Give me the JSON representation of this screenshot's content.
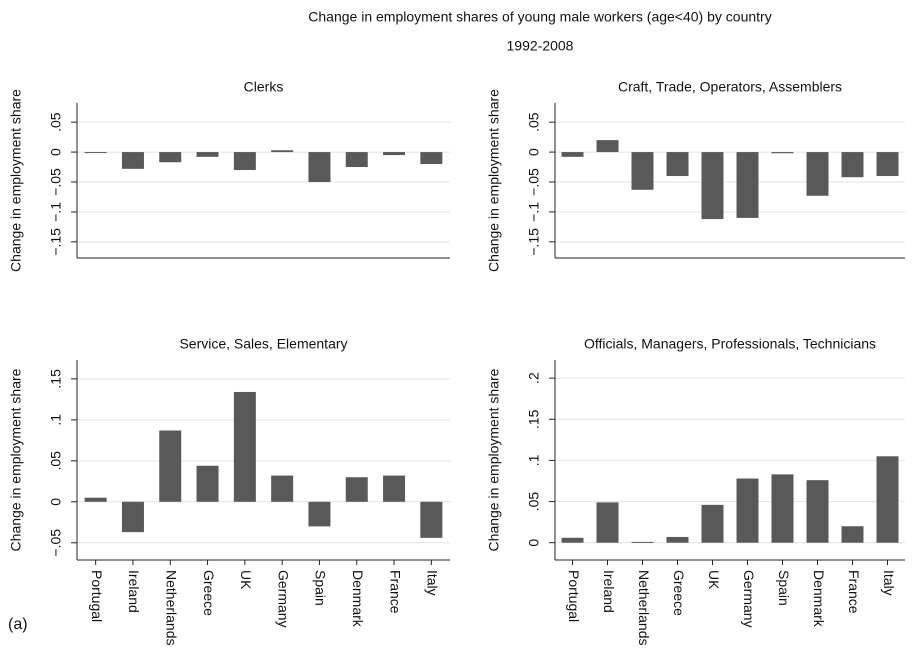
{
  "title": "Change in employment shares of young male workers (age<40) by country",
  "subtitle": "1992-2008",
  "panel_label": "(a)",
  "chart_data": [
    {
      "type": "bar",
      "title": "Clerks",
      "y_label": "Change in employment share",
      "color": "#595959",
      "grid": true,
      "categories": [
        null,
        null,
        null,
        null,
        null,
        null,
        null,
        null,
        null,
        null
      ],
      "values": [
        -0.001,
        -0.028,
        -0.017,
        -0.008,
        -0.03,
        0.003,
        -0.05,
        -0.025,
        -0.005,
        -0.02
      ],
      "ylim": [
        -0.177,
        0.082
      ],
      "yticks": [
        {
          "value": -0.15,
          "label": "−.15"
        },
        {
          "value": -0.1,
          "label": "−.1"
        },
        {
          "value": -0.05,
          "label": "−.05"
        },
        0,
        {
          "value": 0.05,
          "label": ".05"
        }
      ]
    },
    {
      "type": "bar",
      "title": "Craft, Trade, Operators, Assemblers",
      "y_label": "Change in employment share",
      "color": "#595959",
      "grid": true,
      "categories": [
        null,
        null,
        null,
        null,
        null,
        null,
        null,
        null,
        null,
        null
      ],
      "values": [
        -0.008,
        0.02,
        -0.063,
        -0.04,
        -0.112,
        -0.11,
        -0.002,
        -0.073,
        -0.042,
        -0.04
      ],
      "ylim": [
        -0.177,
        0.082
      ],
      "yticks": [
        {
          "value": -0.15,
          "label": "−.15"
        },
        {
          "value": -0.1,
          "label": "−.1"
        },
        {
          "value": -0.05,
          "label": "−.05"
        },
        0,
        {
          "value": 0.05,
          "label": ".05"
        }
      ]
    },
    {
      "type": "bar",
      "title": "Service, Sales, Elementary",
      "y_label": "Change in employment share",
      "color": "#595959",
      "grid": true,
      "categories": [
        "Portugal",
        "Ireland",
        "Netherlands",
        "Greece",
        "UK",
        "Germany",
        "Spain",
        "Denmark",
        "France",
        "Italy"
      ],
      "values": [
        0.005,
        -0.037,
        0.087,
        0.044,
        0.134,
        0.032,
        -0.03,
        0.03,
        0.032,
        -0.044
      ],
      "ylim": [
        -0.071,
        0.173
      ],
      "yticks": [
        {
          "value": -0.05,
          "label": "−.05"
        },
        0,
        {
          "value": 0.05,
          "label": ".05"
        },
        {
          "value": 0.1,
          "label": ".1"
        },
        {
          "value": 0.15,
          "label": ".15"
        }
      ]
    },
    {
      "type": "bar",
      "title": "Officials, Managers, Professionals, Technicians",
      "y_label": "Change in employment share",
      "color": "#595959",
      "grid": true,
      "categories": [
        "Portugal",
        "Ireland",
        "Netherlands",
        "Greece",
        "UK",
        "Germany",
        "Spain",
        "Denmark",
        "France",
        "Italy"
      ],
      "values": [
        0.006,
        0.049,
        0.001,
        0.007,
        0.046,
        0.078,
        0.083,
        0.076,
        0.02,
        0.105
      ],
      "ylim": [
        -0.021,
        0.222
      ],
      "yticks": [
        0,
        {
          "value": 0.05,
          "label": ".05"
        },
        {
          "value": 0.1,
          "label": ".1"
        },
        {
          "value": 0.15,
          "label": ".15"
        },
        {
          "value": 0.2,
          "label": ".2"
        }
      ]
    }
  ]
}
